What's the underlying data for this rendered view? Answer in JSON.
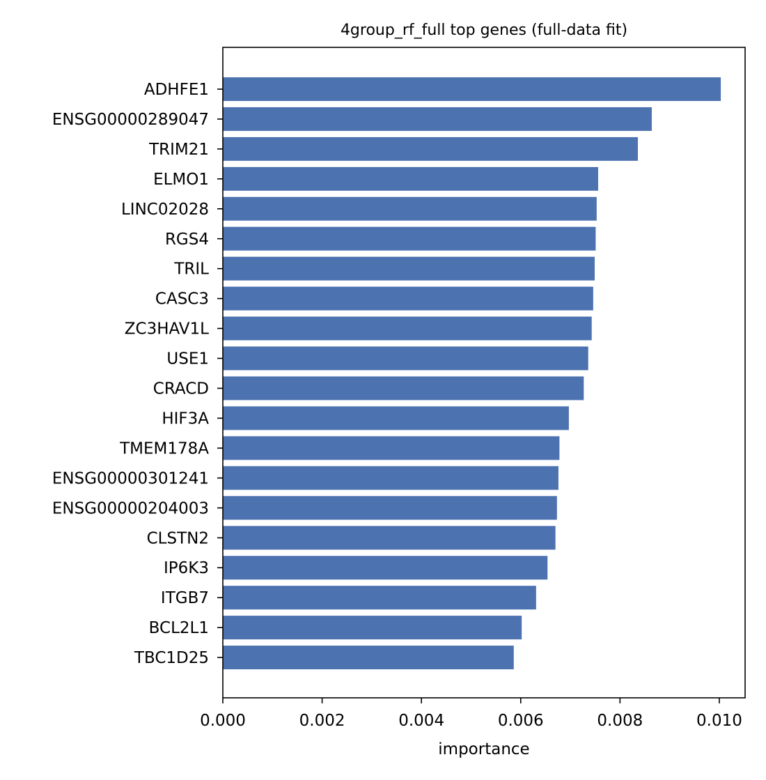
{
  "chart_data": {
    "type": "bar",
    "orientation": "horizontal",
    "title": "4group_rf_full top genes (full-data fit)",
    "xlabel": "importance",
    "ylabel": "",
    "xlim": [
      0,
      0.01052
    ],
    "xticks": [
      0.0,
      0.002,
      0.004,
      0.006,
      0.008,
      0.01
    ],
    "xtick_labels": [
      "0.000",
      "0.002",
      "0.004",
      "0.006",
      "0.008",
      "0.010"
    ],
    "grid": false,
    "legend": "none",
    "bar_color": "#4c72b0",
    "categories": [
      "ADHFE1",
      "ENSG00000289047",
      "TRIM21",
      "ELMO1",
      "LINC02028",
      "RGS4",
      "TRIL",
      "CASC3",
      "ZC3HAV1L",
      "USE1",
      "CRACD",
      "HIF3A",
      "TMEM178A",
      "ENSG00000301241",
      "ENSG00000204003",
      "CLSTN2",
      "IP6K3",
      "ITGB7",
      "BCL2L1",
      "TBC1D25"
    ],
    "values": [
      0.01003,
      0.00864,
      0.00836,
      0.00756,
      0.00753,
      0.00751,
      0.00749,
      0.00746,
      0.00743,
      0.00736,
      0.00727,
      0.00697,
      0.00678,
      0.00676,
      0.00673,
      0.0067,
      0.00654,
      0.00631,
      0.00602,
      0.00586
    ]
  }
}
